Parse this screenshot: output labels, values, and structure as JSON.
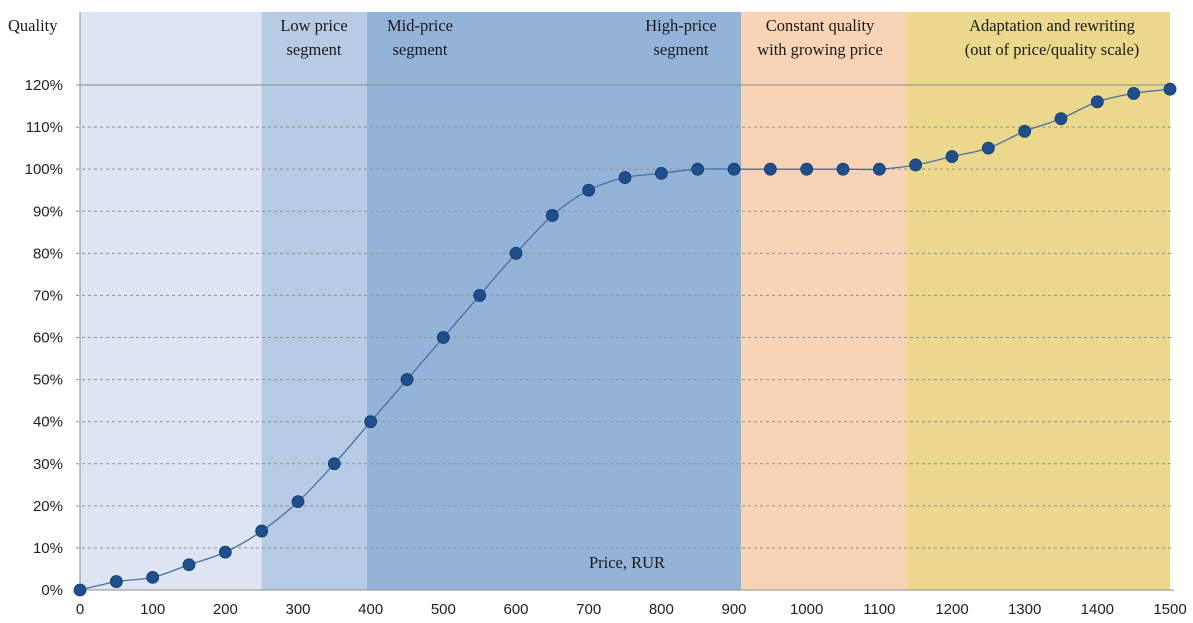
{
  "chart_data": {
    "type": "line",
    "ylabel": "Quality",
    "xlabel": "Price, RUR",
    "xlim": [
      0,
      1500
    ],
    "ylim": [
      0,
      120
    ],
    "x_ticks": [
      0,
      100,
      200,
      300,
      400,
      500,
      600,
      700,
      800,
      900,
      1000,
      1100,
      1200,
      1300,
      1400,
      1500
    ],
    "y_ticks": [
      "0%",
      "10%",
      "20%",
      "30%",
      "40%",
      "50%",
      "60%",
      "70%",
      "80%",
      "90%",
      "100%",
      "110%",
      "120%"
    ],
    "grid": true,
    "series": [
      {
        "color": "#1f4e8c",
        "line_color": "#4a6fa5",
        "x": [
          0,
          50,
          100,
          150,
          200,
          250,
          300,
          350,
          400,
          450,
          500,
          550,
          600,
          650,
          700,
          750,
          800,
          850,
          900,
          950,
          1000,
          1050,
          1100,
          1150,
          1200,
          1250,
          1300,
          1350,
          1400,
          1450,
          1500
        ],
        "y": [
          0,
          2,
          3,
          6,
          9,
          14,
          21,
          30,
          40,
          50,
          60,
          70,
          80,
          89,
          95,
          98,
          99,
          100,
          100,
          100,
          100,
          100,
          100,
          101,
          103,
          105,
          109,
          112,
          116,
          118,
          119
        ]
      }
    ],
    "regions": [
      {
        "x0": 0,
        "x1": 250,
        "color": "#dce5f1",
        "label_lines": []
      },
      {
        "x0": 250,
        "x1": 395,
        "color": "#b7cbe4",
        "label_lines": [
          "Low price",
          "segment"
        ]
      },
      {
        "x0": 395,
        "x1": 910,
        "color": "#94b3d9",
        "label_lines": []
      },
      {
        "x0": 910,
        "x1": 1137,
        "color": "#f9d3b5",
        "label_lines": [
          "Constant quality",
          "with growing price"
        ]
      },
      {
        "x0": 1137,
        "x1": 1500,
        "color": "#ecd88d",
        "label_lines": [
          "Adaptation and rewriting",
          "(out of price/quality scale)"
        ]
      }
    ],
    "annotations": [
      {
        "label_lines": [
          "Mid-price",
          "segment"
        ]
      },
      {
        "label_lines": [
          "High-price",
          "segment"
        ]
      }
    ]
  }
}
